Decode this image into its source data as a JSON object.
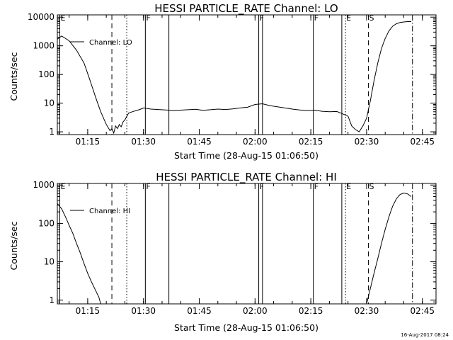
{
  "chart_data": [
    {
      "type": "line",
      "title": "HESSI PARTICLE_RATE Channel: LO",
      "xlabel": "Start Time (28-Aug-15 01:06:50)",
      "ylabel": "Counts/sec",
      "y_scale": "log",
      "ylim": [
        0.8,
        12000
      ],
      "xlim": [
        "01:06:50",
        "02:48:40"
      ],
      "x_ticks": [
        "01:15",
        "01:30",
        "01:45",
        "02:00",
        "02:15",
        "02:30",
        "02:45"
      ],
      "y_ticks": [
        "1",
        "10",
        "100",
        "1000",
        "10000"
      ],
      "legend": "Channel: LO",
      "legend_position": "top-left",
      "series": [
        {
          "name": "Channel: LO",
          "x": [
            "01:06:50",
            "01:08:00",
            "01:10:00",
            "01:12:00",
            "01:14:00",
            "01:15:30",
            "01:17:00",
            "01:18:30",
            "01:20:00",
            "01:21:00",
            "01:21:30",
            "01:22:00",
            "01:22:30",
            "01:23:00",
            "01:23:30",
            "01:24:00",
            "01:24:30",
            "01:25:00",
            "01:26:00",
            "01:27:00",
            "01:28:00",
            "01:29:00",
            "01:30:00",
            "01:32:00",
            "01:34:00",
            "01:36:00",
            "01:38:00",
            "01:40:00",
            "01:42:00",
            "01:44:00",
            "01:46:00",
            "01:48:00",
            "01:50:00",
            "01:52:00",
            "01:54:00",
            "01:56:00",
            "01:58:00",
            "02:00:00",
            "02:02:00",
            "02:04:00",
            "02:06:00",
            "02:08:00",
            "02:10:00",
            "02:12:00",
            "02:14:00",
            "02:16:00",
            "02:18:00",
            "02:20:00",
            "02:22:00",
            "02:24:00",
            "02:25:00",
            "02:26:00",
            "02:27:00",
            "02:28:00",
            "02:29:00",
            "02:30:00",
            "02:31:00",
            "02:32:00",
            "02:33:00",
            "02:34:00",
            "02:35:00",
            "02:36:00",
            "02:37:00",
            "02:38:00",
            "02:39:00",
            "02:40:00",
            "02:41:00",
            "02:42:00"
          ],
          "values": [
            1700,
            2200,
            1500,
            700,
            250,
            70,
            18,
            5,
            1.8,
            1.1,
            1.3,
            0.9,
            1.6,
            1.3,
            1.8,
            1.5,
            2.2,
            2.6,
            4.5,
            5.0,
            5.5,
            6.0,
            6.8,
            6.2,
            6.0,
            5.8,
            5.5,
            5.7,
            5.9,
            6.1,
            5.6,
            5.9,
            6.2,
            6.0,
            6.3,
            6.8,
            7.2,
            9.0,
            9.5,
            8.2,
            7.5,
            6.8,
            6.2,
            5.8,
            5.5,
            5.7,
            5.2,
            5.0,
            5.1,
            4.0,
            3.5,
            1.6,
            1.2,
            1.0,
            1.6,
            3.0,
            12,
            60,
            250,
            800,
            1800,
            3300,
            4800,
            5900,
            6500,
            6800,
            7000,
            7000
          ]
        }
      ],
      "vertical_markers": [
        {
          "x": "01:07:30",
          "style": "solid",
          "flag": "E"
        },
        {
          "x": "01:21:30",
          "style": "dashed"
        },
        {
          "x": "01:25:30",
          "style": "dotted"
        },
        {
          "x": "01:30:30",
          "style": "solid",
          "flag": "F"
        },
        {
          "x": "01:36:50",
          "style": "solid"
        },
        {
          "x": "02:01:00",
          "style": "solid",
          "flag": "F"
        },
        {
          "x": "02:02:00",
          "style": "solid"
        },
        {
          "x": "02:15:40",
          "style": "solid",
          "flag": "F"
        },
        {
          "x": "02:23:20",
          "style": "solid"
        },
        {
          "x": "02:24:20",
          "style": "dotted",
          "flag": "E"
        },
        {
          "x": "02:30:30",
          "style": "dashed",
          "flag": "S"
        },
        {
          "x": "02:42:20",
          "style": "dashdot"
        }
      ]
    },
    {
      "type": "line",
      "title": "HESSI PARTICLE_RATE Channel: HI",
      "xlabel": "Start Time (28-Aug-15 01:06:50)",
      "ylabel": "Counts/sec",
      "y_scale": "log",
      "ylim": [
        0.8,
        1100
      ],
      "xlim": [
        "01:06:50",
        "02:48:40"
      ],
      "x_ticks": [
        "01:15",
        "01:30",
        "01:45",
        "02:00",
        "02:15",
        "02:30",
        "02:45"
      ],
      "y_ticks": [
        "1",
        "10",
        "100",
        "1000"
      ],
      "legend": "Channel: HI",
      "legend_position": "top-left",
      "series": [
        {
          "name": "Channel: HI",
          "x": [
            "01:06:50",
            "01:08:00",
            "01:09:00",
            "01:10:00",
            "01:11:00",
            "01:12:00",
            "01:13:00",
            "01:14:00",
            "01:15:00",
            "01:16:00",
            "01:17:00",
            "01:18:00",
            "01:18:30",
            "02:30:00",
            "02:31:00",
            "02:32:00",
            "02:33:00",
            "02:34:00",
            "02:35:00",
            "02:36:00",
            "02:37:00",
            "02:38:00",
            "02:39:00",
            "02:40:00",
            "02:41:00",
            "02:42:00"
          ],
          "values": [
            330,
            240,
            150,
            90,
            55,
            30,
            17,
            9,
            5,
            3,
            1.9,
            1.2,
            0.8,
            0.8,
            2,
            5,
            12,
            30,
            70,
            150,
            280,
            440,
            570,
            620,
            590,
            500
          ]
        }
      ],
      "vertical_markers": [
        {
          "x": "01:07:30",
          "style": "solid",
          "flag": "E"
        },
        {
          "x": "01:21:30",
          "style": "dashed"
        },
        {
          "x": "01:25:30",
          "style": "dotted"
        },
        {
          "x": "01:30:30",
          "style": "solid",
          "flag": "F"
        },
        {
          "x": "01:36:50",
          "style": "solid"
        },
        {
          "x": "02:01:00",
          "style": "solid",
          "flag": "F"
        },
        {
          "x": "02:02:00",
          "style": "solid"
        },
        {
          "x": "02:15:40",
          "style": "solid",
          "flag": "F"
        },
        {
          "x": "02:23:20",
          "style": "solid"
        },
        {
          "x": "02:24:20",
          "style": "dotted",
          "flag": "E"
        },
        {
          "x": "02:30:30",
          "style": "dashed",
          "flag": "S"
        },
        {
          "x": "02:42:20",
          "style": "dashdot"
        }
      ]
    }
  ],
  "timestamp": "16-Aug-2017 08:24"
}
